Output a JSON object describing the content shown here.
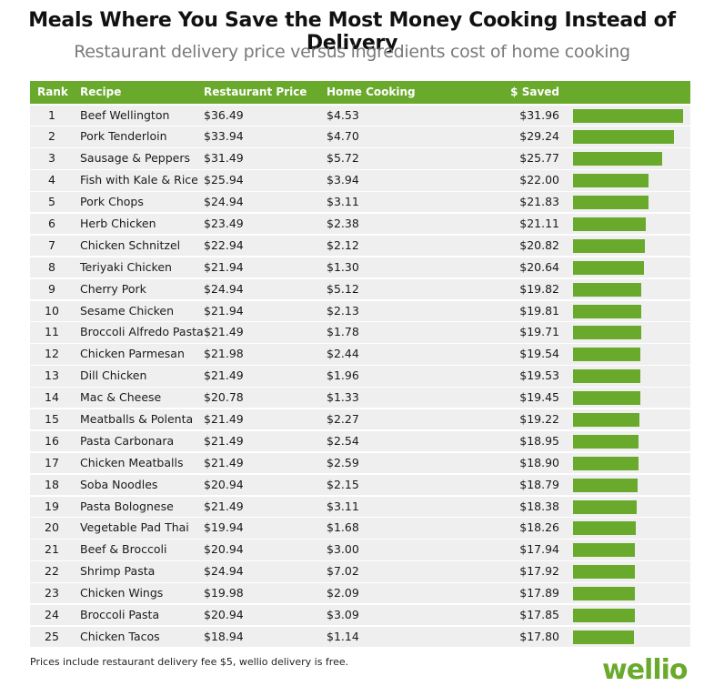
{
  "title": "Meals Where You Save the Most Money Cooking Instead of Delivery",
  "subtitle": "Restaurant delivery price versus ingredients cost of home cooking",
  "footnote": "Prices include restaurant delivery fee $5, wellio delivery is free.",
  "logo": "wellio",
  "colors": {
    "accent": "#69a92b",
    "row_bg": "#efefef"
  },
  "chart_data": {
    "type": "table",
    "columns": [
      "Rank",
      "Recipe",
      "Restaurant Price",
      "Home Cooking",
      "$ Saved"
    ],
    "rows": [
      {
        "rank": "1",
        "recipe": "Beef Wellington",
        "restaurant": "$36.49",
        "home": "$4.53",
        "saved": "$31.96",
        "saved_value": 31.96
      },
      {
        "rank": "2",
        "recipe": "Pork Tenderloin",
        "restaurant": "$33.94",
        "home": "$4.70",
        "saved": "$29.24",
        "saved_value": 29.24
      },
      {
        "rank": "3",
        "recipe": "Sausage & Peppers",
        "restaurant": "$31.49",
        "home": "$5.72",
        "saved": "$25.77",
        "saved_value": 25.77
      },
      {
        "rank": "4",
        "recipe": "Fish with Kale & Rice",
        "restaurant": "$25.94",
        "home": "$3.94",
        "saved": "$22.00",
        "saved_value": 22.0
      },
      {
        "rank": "5",
        "recipe": "Pork Chops",
        "restaurant": "$24.94",
        "home": "$3.11",
        "saved": "$21.83",
        "saved_value": 21.83
      },
      {
        "rank": "6",
        "recipe": "Herb Chicken",
        "restaurant": "$23.49",
        "home": "$2.38",
        "saved": "$21.11",
        "saved_value": 21.11
      },
      {
        "rank": "7",
        "recipe": "Chicken Schnitzel",
        "restaurant": "$22.94",
        "home": "$2.12",
        "saved": "$20.82",
        "saved_value": 20.82
      },
      {
        "rank": "8",
        "recipe": "Teriyaki Chicken",
        "restaurant": "$21.94",
        "home": "$1.30",
        "saved": "$20.64",
        "saved_value": 20.64
      },
      {
        "rank": "9",
        "recipe": "Cherry Pork",
        "restaurant": "$24.94",
        "home": "$5.12",
        "saved": "$19.82",
        "saved_value": 19.82
      },
      {
        "rank": "10",
        "recipe": "Sesame Chicken",
        "restaurant": "$21.94",
        "home": "$2.13",
        "saved": "$19.81",
        "saved_value": 19.81
      },
      {
        "rank": "11",
        "recipe": "Broccoli Alfredo Pasta",
        "restaurant": "$21.49",
        "home": "$1.78",
        "saved": "$19.71",
        "saved_value": 19.71
      },
      {
        "rank": "12",
        "recipe": "Chicken Parmesan",
        "restaurant": "$21.98",
        "home": "$2.44",
        "saved": "$19.54",
        "saved_value": 19.54
      },
      {
        "rank": "13",
        "recipe": "Dill Chicken",
        "restaurant": "$21.49",
        "home": "$1.96",
        "saved": "$19.53",
        "saved_value": 19.53
      },
      {
        "rank": "14",
        "recipe": "Mac & Cheese",
        "restaurant": "$20.78",
        "home": "$1.33",
        "saved": "$19.45",
        "saved_value": 19.45
      },
      {
        "rank": "15",
        "recipe": "Meatballs & Polenta",
        "restaurant": "$21.49",
        "home": "$2.27",
        "saved": "$19.22",
        "saved_value": 19.22
      },
      {
        "rank": "16",
        "recipe": "Pasta Carbonara",
        "restaurant": "$21.49",
        "home": "$2.54",
        "saved": "$18.95",
        "saved_value": 18.95
      },
      {
        "rank": "17",
        "recipe": "Chicken Meatballs",
        "restaurant": "$21.49",
        "home": "$2.59",
        "saved": "$18.90",
        "saved_value": 18.9
      },
      {
        "rank": "18",
        "recipe": "Soba Noodles",
        "restaurant": "$20.94",
        "home": "$2.15",
        "saved": "$18.79",
        "saved_value": 18.79
      },
      {
        "rank": "19",
        "recipe": "Pasta Bolognese",
        "restaurant": "$21.49",
        "home": "$3.11",
        "saved": "$18.38",
        "saved_value": 18.38
      },
      {
        "rank": "20",
        "recipe": "Vegetable Pad Thai",
        "restaurant": "$19.94",
        "home": "$1.68",
        "saved": "$18.26",
        "saved_value": 18.26
      },
      {
        "rank": "21",
        "recipe": "Beef & Broccoli",
        "restaurant": "$20.94",
        "home": "$3.00",
        "saved": "$17.94",
        "saved_value": 17.94
      },
      {
        "rank": "22",
        "recipe": "Shrimp Pasta",
        "restaurant": "$24.94",
        "home": "$7.02",
        "saved": "$17.92",
        "saved_value": 17.92
      },
      {
        "rank": "23",
        "recipe": "Chicken Wings",
        "restaurant": "$19.98",
        "home": "$2.09",
        "saved": "$17.89",
        "saved_value": 17.89
      },
      {
        "rank": "24",
        "recipe": "Broccoli Pasta",
        "restaurant": "$20.94",
        "home": "$3.09",
        "saved": "$17.85",
        "saved_value": 17.85
      },
      {
        "rank": "25",
        "recipe": "Chicken Tacos",
        "restaurant": "$18.94",
        "home": "$1.14",
        "saved": "$17.80",
        "saved_value": 17.8
      }
    ]
  }
}
